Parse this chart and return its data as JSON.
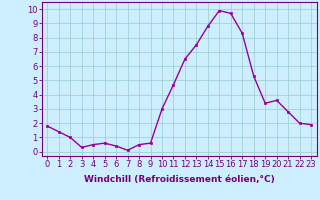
{
  "x": [
    0,
    1,
    2,
    3,
    4,
    5,
    6,
    7,
    8,
    9,
    10,
    11,
    12,
    13,
    14,
    15,
    16,
    17,
    18,
    19,
    20,
    21,
    22,
    23
  ],
  "y": [
    1.8,
    1.4,
    1.0,
    0.3,
    0.5,
    0.6,
    0.4,
    0.1,
    0.5,
    0.6,
    3.0,
    4.7,
    6.5,
    7.5,
    8.8,
    9.9,
    9.7,
    8.3,
    5.3,
    3.4,
    3.6,
    2.8,
    2.0,
    1.9
  ],
  "line_color": "#990099",
  "marker": "s",
  "marker_size": 2,
  "bg_color": "#cceeff",
  "grid_color": "#99cccc",
  "xlabel": "Windchill (Refroidissement éolien,°C)",
  "xlabel_fontsize": 6.5,
  "ylim": [
    -0.3,
    10.5
  ],
  "xlim": [
    -0.5,
    23.5
  ],
  "yticks": [
    0,
    1,
    2,
    3,
    4,
    5,
    6,
    7,
    8,
    9,
    10
  ],
  "xticks": [
    0,
    1,
    2,
    3,
    4,
    5,
    6,
    7,
    8,
    9,
    10,
    11,
    12,
    13,
    14,
    15,
    16,
    17,
    18,
    19,
    20,
    21,
    22,
    23
  ],
  "tick_label_fontsize": 6,
  "axis_color": "#770077",
  "spine_color": "#770077",
  "linewidth": 1.0
}
